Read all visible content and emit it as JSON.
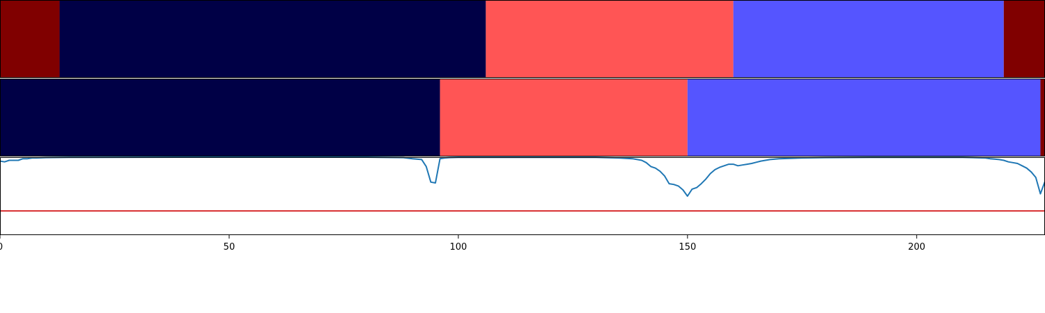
{
  "chart_data": [
    {
      "type": "segment-bar",
      "title": "",
      "xlim": [
        0,
        228
      ],
      "segments": [
        {
          "start": 0,
          "end": 13,
          "color": "#800000"
        },
        {
          "start": 13,
          "end": 106,
          "color": "#000046"
        },
        {
          "start": 106,
          "end": 160,
          "color": "#ff5555"
        },
        {
          "start": 160,
          "end": 219,
          "color": "#5555ff"
        },
        {
          "start": 219,
          "end": 228,
          "color": "#800000"
        }
      ]
    },
    {
      "type": "segment-bar",
      "title": "",
      "xlim": [
        0,
        228
      ],
      "segments": [
        {
          "start": 0,
          "end": 96,
          "color": "#000046"
        },
        {
          "start": 96,
          "end": 150,
          "color": "#ff5555"
        },
        {
          "start": 150,
          "end": 227,
          "color": "#5555ff"
        },
        {
          "start": 227,
          "end": 228,
          "color": "#800000"
        }
      ]
    },
    {
      "type": "line",
      "title": "",
      "xlabel": "",
      "ylabel": "",
      "xlim": [
        0,
        228
      ],
      "ylim": [
        0.0,
        1.0
      ],
      "xticks": [
        "0",
        "50",
        "100",
        "150",
        "200"
      ],
      "series": [
        {
          "color": "#1f77b4",
          "x": [
            0,
            1,
            2,
            3,
            4,
            5,
            6,
            7,
            8,
            10,
            15,
            20,
            30,
            40,
            50,
            60,
            70,
            80,
            88,
            90,
            92,
            93,
            94,
            95,
            96,
            97,
            98,
            100,
            102,
            104,
            110,
            120,
            130,
            135,
            138,
            140,
            141,
            142,
            143,
            144,
            145,
            146,
            147,
            148,
            149,
            150,
            151,
            152,
            153,
            154,
            155,
            156,
            157,
            158,
            159,
            160,
            161,
            162,
            163,
            164,
            165,
            166,
            167,
            168,
            170,
            175,
            180,
            190,
            200,
            210,
            215,
            216,
            217,
            218,
            219,
            220,
            221,
            222,
            223,
            224,
            225,
            226,
            227,
            228
          ],
          "y": [
            0.95,
            0.94,
            0.96,
            0.96,
            0.96,
            0.98,
            0.98,
            0.99,
            0.99,
            0.995,
            0.997,
            0.998,
            0.999,
            1.0,
            1.0,
            1.0,
            1.0,
            1.0,
            0.995,
            0.98,
            0.97,
            0.88,
            0.68,
            0.67,
            0.98,
            0.99,
            0.995,
            0.997,
            0.997,
            0.998,
            0.998,
            0.998,
            0.998,
            0.99,
            0.98,
            0.96,
            0.93,
            0.88,
            0.86,
            0.82,
            0.76,
            0.66,
            0.65,
            0.63,
            0.58,
            0.5,
            0.59,
            0.61,
            0.66,
            0.72,
            0.79,
            0.84,
            0.87,
            0.89,
            0.91,
            0.91,
            0.89,
            0.9,
            0.91,
            0.92,
            0.935,
            0.95,
            0.96,
            0.97,
            0.98,
            0.99,
            0.995,
            0.997,
            0.998,
            0.998,
            0.99,
            0.98,
            0.975,
            0.97,
            0.96,
            0.94,
            0.93,
            0.92,
            0.89,
            0.86,
            0.81,
            0.74,
            0.53,
            0.69
          ]
        },
        {
          "color": "#d62728",
          "x": [
            0,
            228
          ],
          "y": [
            0.31,
            0.31
          ]
        }
      ]
    }
  ]
}
